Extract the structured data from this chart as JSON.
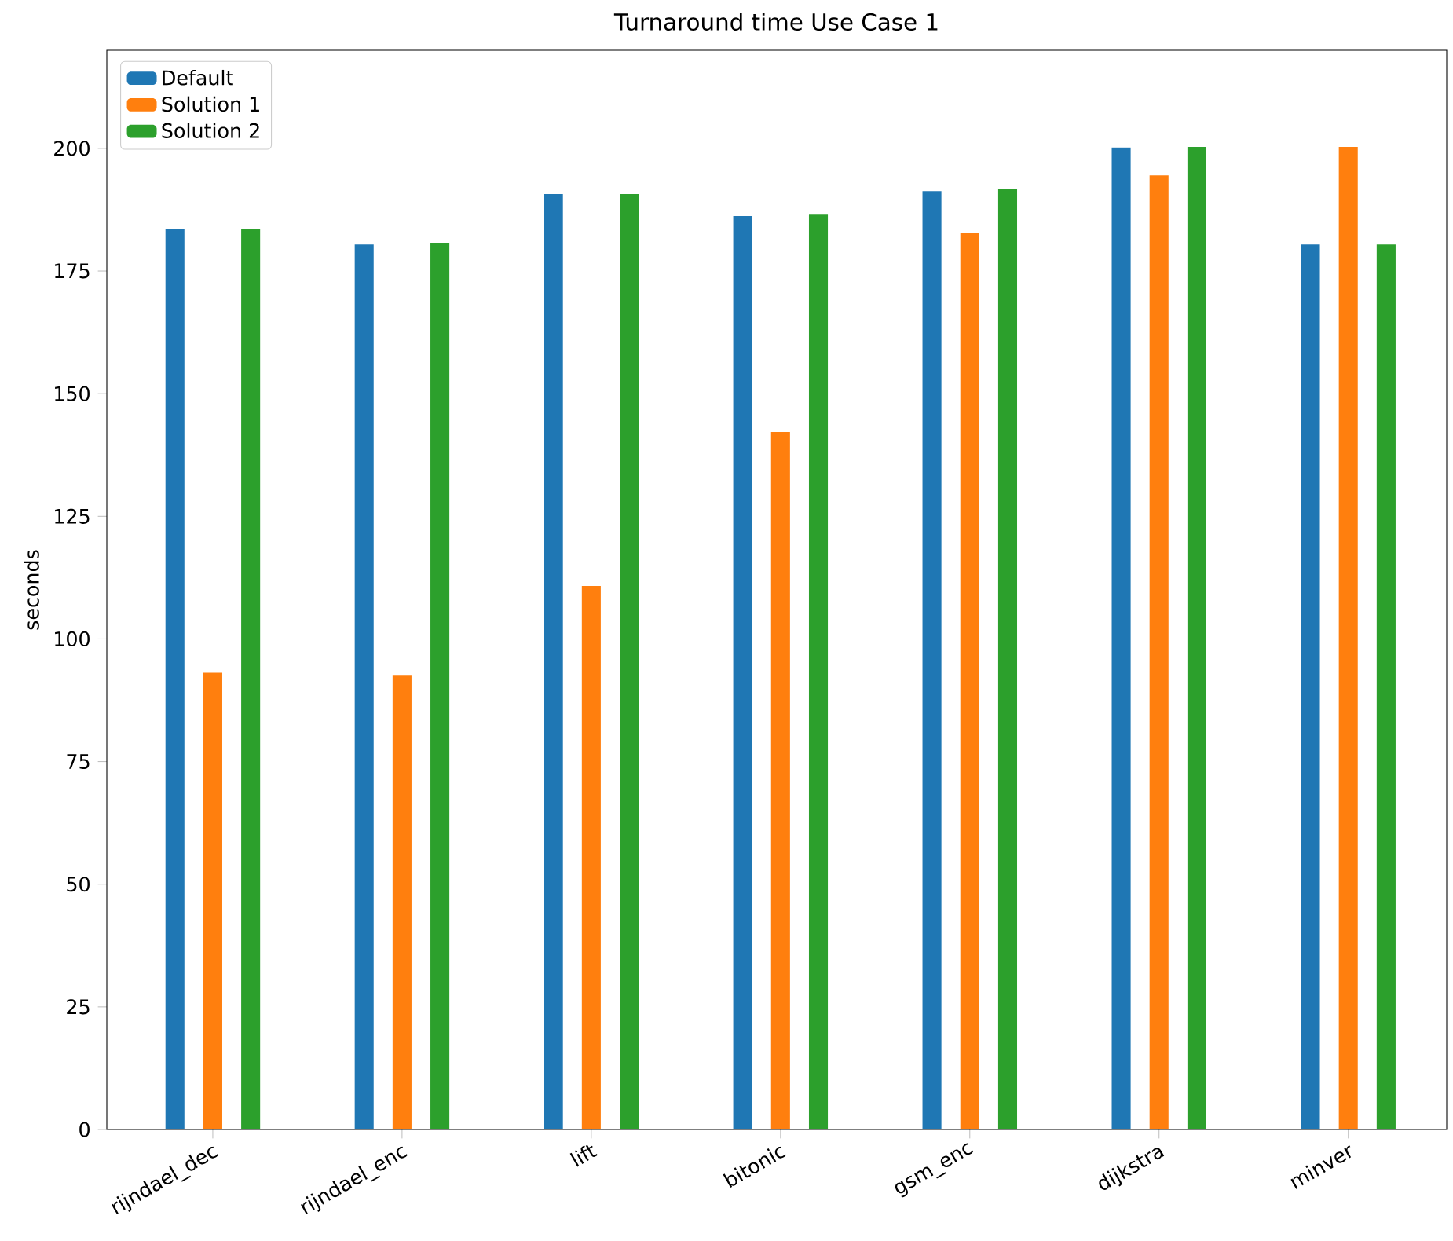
{
  "chart_data": {
    "type": "bar",
    "title": "Turnaround time Use Case 1",
    "ylabel": "seconds",
    "categories": [
      "rijndael_dec",
      "rijndael_enc",
      "lift",
      "bitonic",
      "gsm_enc",
      "dijkstra",
      "minver"
    ],
    "series": [
      {
        "name": "Default",
        "color": "#1f77b4",
        "values": [
          183.6,
          180.4,
          190.7,
          186.2,
          191.3,
          200.2,
          180.4
        ]
      },
      {
        "name": "Solution 1",
        "color": "#ff7f0e",
        "values": [
          93.1,
          92.5,
          110.8,
          142.2,
          182.7,
          194.5,
          200.3
        ]
      },
      {
        "name": "Solution 2",
        "color": "#2ca02c",
        "values": [
          183.6,
          180.7,
          190.7,
          186.5,
          191.7,
          200.3,
          180.4
        ]
      }
    ],
    "ylim": [
      0,
      220
    ],
    "yticks": [
      0,
      25,
      50,
      75,
      100,
      125,
      150,
      175,
      200
    ],
    "grid": false,
    "legend": "top left"
  }
}
